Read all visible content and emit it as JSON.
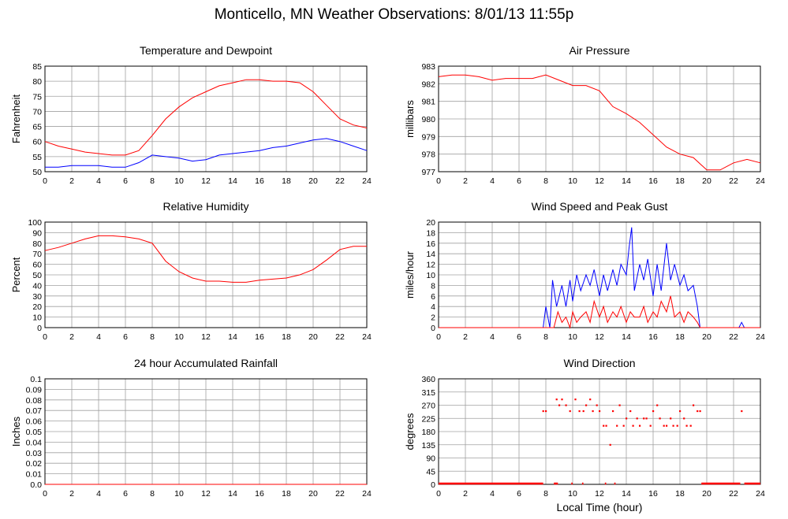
{
  "page": {
    "title": "Monticello, MN Weather Observations: 8/01/13 11:55p"
  },
  "colors": {
    "red": "#ff0000",
    "blue": "#0000ff",
    "grid": "#a0a0a0",
    "frame": "#000000"
  },
  "chart_data": [
    {
      "id": "temperature",
      "type": "line",
      "title": "Temperature and Dewpoint",
      "xlabel": "",
      "ylabel": "Fahrenheit",
      "xlim": [
        0,
        24
      ],
      "ylim": [
        50,
        85
      ],
      "xticks": [
        0,
        2,
        4,
        6,
        8,
        10,
        12,
        14,
        16,
        18,
        20,
        22,
        24
      ],
      "yticks": [
        50,
        55,
        60,
        65,
        70,
        75,
        80,
        85
      ],
      "grid": true,
      "series": [
        {
          "color": "#ff0000",
          "x": [
            0,
            1,
            2,
            3,
            4,
            5,
            6,
            7,
            8,
            9,
            10,
            11,
            12,
            13,
            14,
            15,
            16,
            17,
            18,
            19,
            20,
            21,
            22,
            23,
            24
          ],
          "y": [
            60,
            58.5,
            57.5,
            56.5,
            56,
            55.5,
            55.5,
            57,
            62,
            67.5,
            71.5,
            74.5,
            76.5,
            78.5,
            79.5,
            80.5,
            80.5,
            80,
            80,
            79.5,
            76.5,
            72,
            67.5,
            65.5,
            64.5
          ]
        },
        {
          "color": "#0000ff",
          "x": [
            0,
            1,
            2,
            3,
            4,
            5,
            6,
            7,
            8,
            9,
            10,
            11,
            12,
            13,
            14,
            15,
            16,
            17,
            18,
            19,
            20,
            21,
            22,
            23,
            24
          ],
          "y": [
            51.5,
            51.5,
            52,
            52,
            52,
            51.5,
            51.5,
            53,
            55.5,
            55,
            54.5,
            53.5,
            54,
            55.5,
            56,
            56.5,
            57,
            58,
            58.5,
            59.5,
            60.5,
            61,
            60,
            58.5,
            57
          ]
        }
      ]
    },
    {
      "id": "pressure",
      "type": "line",
      "title": "Air Pressure",
      "xlabel": "",
      "ylabel": "millibars",
      "xlim": [
        0,
        24
      ],
      "ylim": [
        977,
        983
      ],
      "xticks": [
        0,
        2,
        4,
        6,
        8,
        10,
        12,
        14,
        16,
        18,
        20,
        22,
        24
      ],
      "yticks": [
        977,
        978,
        979,
        980,
        981,
        982,
        983
      ],
      "grid": true,
      "series": [
        {
          "color": "#ff0000",
          "x": [
            0,
            1,
            2,
            3,
            4,
            5,
            6,
            7,
            8,
            9,
            10,
            11,
            12,
            13,
            14,
            15,
            16,
            17,
            18,
            19,
            20,
            21,
            22,
            23,
            24
          ],
          "y": [
            982.4,
            982.5,
            982.5,
            982.4,
            982.2,
            982.3,
            982.3,
            982.3,
            982.5,
            982.2,
            981.9,
            981.9,
            981.6,
            980.7,
            980.3,
            979.8,
            979.1,
            978.4,
            978,
            977.8,
            977.1,
            977.1,
            977.5,
            977.7,
            977.5
          ]
        }
      ]
    },
    {
      "id": "humidity",
      "type": "line",
      "title": "Relative Humidity",
      "xlabel": "",
      "ylabel": "Percent",
      "xlim": [
        0,
        24
      ],
      "ylim": [
        0,
        100
      ],
      "xticks": [
        0,
        2,
        4,
        6,
        8,
        10,
        12,
        14,
        16,
        18,
        20,
        22,
        24
      ],
      "yticks": [
        0,
        10,
        20,
        30,
        40,
        50,
        60,
        70,
        80,
        90,
        100
      ],
      "grid": true,
      "series": [
        {
          "color": "#ff0000",
          "x": [
            0,
            1,
            2,
            3,
            4,
            5,
            6,
            7,
            8,
            9,
            10,
            11,
            12,
            13,
            14,
            15,
            16,
            17,
            18,
            19,
            20,
            21,
            22,
            23,
            24
          ],
          "y": [
            73,
            76,
            80,
            84,
            87,
            87,
            86,
            84,
            80,
            63,
            53,
            47,
            44,
            44,
            43,
            43,
            45,
            46,
            47,
            50,
            55,
            64,
            74,
            77,
            77
          ]
        }
      ]
    },
    {
      "id": "wind",
      "type": "line",
      "title": "Wind Speed and Peak Gust",
      "xlabel": "",
      "ylabel": "miles/hour",
      "xlim": [
        0,
        24
      ],
      "ylim": [
        0,
        20
      ],
      "xticks": [
        0,
        2,
        4,
        6,
        8,
        10,
        12,
        14,
        16,
        18,
        20,
        22,
        24
      ],
      "yticks": [
        0,
        2,
        4,
        6,
        8,
        10,
        12,
        14,
        16,
        18,
        20
      ],
      "grid": true,
      "series": [
        {
          "color": "#0000ff",
          "x": [
            0,
            7.8,
            8.0,
            8.3,
            8.5,
            8.8,
            9.2,
            9.5,
            9.8,
            10,
            10.3,
            10.6,
            11,
            11.3,
            11.6,
            12,
            12.3,
            12.6,
            13,
            13.3,
            13.6,
            14,
            14.2,
            14.4,
            14.6,
            15,
            15.3,
            15.6,
            16,
            16.3,
            16.6,
            17,
            17.3,
            17.6,
            18,
            18.3,
            18.6,
            19,
            19.3,
            19.5,
            22.4,
            22.6,
            22.8,
            24
          ],
          "y": [
            0,
            0,
            4,
            0,
            9,
            4,
            8,
            4,
            9,
            5,
            10,
            7,
            10,
            8,
            11,
            6,
            10,
            7,
            11,
            8,
            12,
            10,
            15,
            19,
            7,
            12,
            9,
            13,
            6,
            12,
            7,
            16,
            9,
            12,
            8,
            10,
            7,
            8,
            4,
            0,
            0,
            1,
            0,
            0
          ]
        },
        {
          "color": "#ff0000",
          "x": [
            0,
            8.6,
            8.9,
            9.2,
            9.5,
            9.8,
            10,
            10.3,
            10.6,
            11,
            11.3,
            11.6,
            12,
            12.3,
            12.6,
            13,
            13.3,
            13.6,
            14,
            14.3,
            14.6,
            15,
            15.3,
            15.6,
            16,
            16.3,
            16.6,
            17,
            17.3,
            17.6,
            18,
            18.3,
            18.6,
            19,
            19.3,
            19.5,
            24
          ],
          "y": [
            0,
            0,
            3,
            1,
            2,
            0,
            3,
            1,
            2,
            3,
            1,
            5,
            2,
            4,
            1,
            3,
            2,
            4,
            1,
            3,
            2,
            2,
            4,
            1,
            3,
            2,
            5,
            3,
            6,
            2,
            3,
            1,
            3,
            2,
            1,
            0,
            0
          ]
        }
      ]
    },
    {
      "id": "rainfall",
      "type": "line",
      "title": "24 hour Accumulated Rainfall",
      "xlabel": "",
      "ylabel": "Inches",
      "xlim": [
        0,
        24
      ],
      "ylim": [
        0,
        0.1
      ],
      "xticks": [
        0,
        2,
        4,
        6,
        8,
        10,
        12,
        14,
        16,
        18,
        20,
        22,
        24
      ],
      "yticks": [
        "0.0",
        "0.01",
        "0.02",
        "0.03",
        "0.04",
        "0.05",
        "0.06",
        "0.07",
        "0.08",
        "0.09",
        "0.1"
      ],
      "grid": true,
      "series": [
        {
          "color": "#ff0000",
          "x": [
            0,
            24
          ],
          "y": [
            0,
            0
          ]
        }
      ]
    },
    {
      "id": "direction",
      "type": "scatter",
      "title": "Wind Direction",
      "xlabel": "Local Time (hour)",
      "ylabel": "degrees",
      "xlim": [
        0,
        24
      ],
      "ylim": [
        0,
        360
      ],
      "xticks": [
        0,
        2,
        4,
        6,
        8,
        10,
        12,
        14,
        16,
        18,
        20,
        22,
        24
      ],
      "yticks": [
        0,
        45,
        90,
        135,
        180,
        225,
        270,
        315,
        360
      ],
      "grid": true,
      "series": [
        {
          "color": "#ff0000",
          "zero_ranges": [
            [
              0,
              7.8
            ],
            [
              8.6,
              8.9
            ],
            [
              9.9,
              10.0
            ],
            [
              10.7,
              10.8
            ],
            [
              12.4,
              12.5
            ],
            [
              13.1,
              13.2
            ],
            [
              19.6,
              22.5
            ],
            [
              22.8,
              24
            ]
          ],
          "x": [
            7.8,
            8.0,
            8.8,
            9.0,
            9.2,
            9.5,
            9.8,
            10.2,
            10.5,
            10.8,
            11.0,
            11.3,
            11.5,
            11.8,
            12.0,
            12.3,
            12.5,
            12.8,
            13.0,
            13.3,
            13.5,
            13.8,
            14.0,
            14.3,
            14.5,
            14.8,
            15.0,
            15.3,
            15.5,
            15.8,
            16.0,
            16.3,
            16.5,
            16.8,
            17.0,
            17.3,
            17.5,
            17.8,
            18.0,
            18.3,
            18.5,
            18.8,
            19.0,
            19.3,
            19.5,
            22.6
          ],
          "y": [
            250,
            250,
            290,
            270,
            290,
            270,
            250,
            290,
            250,
            250,
            270,
            290,
            250,
            270,
            250,
            200,
            200,
            135,
            250,
            200,
            270,
            200,
            225,
            250,
            200,
            225,
            200,
            225,
            225,
            200,
            250,
            270,
            225,
            200,
            200,
            225,
            200,
            200,
            250,
            225,
            200,
            200,
            270,
            250,
            250,
            250
          ]
        }
      ]
    }
  ]
}
